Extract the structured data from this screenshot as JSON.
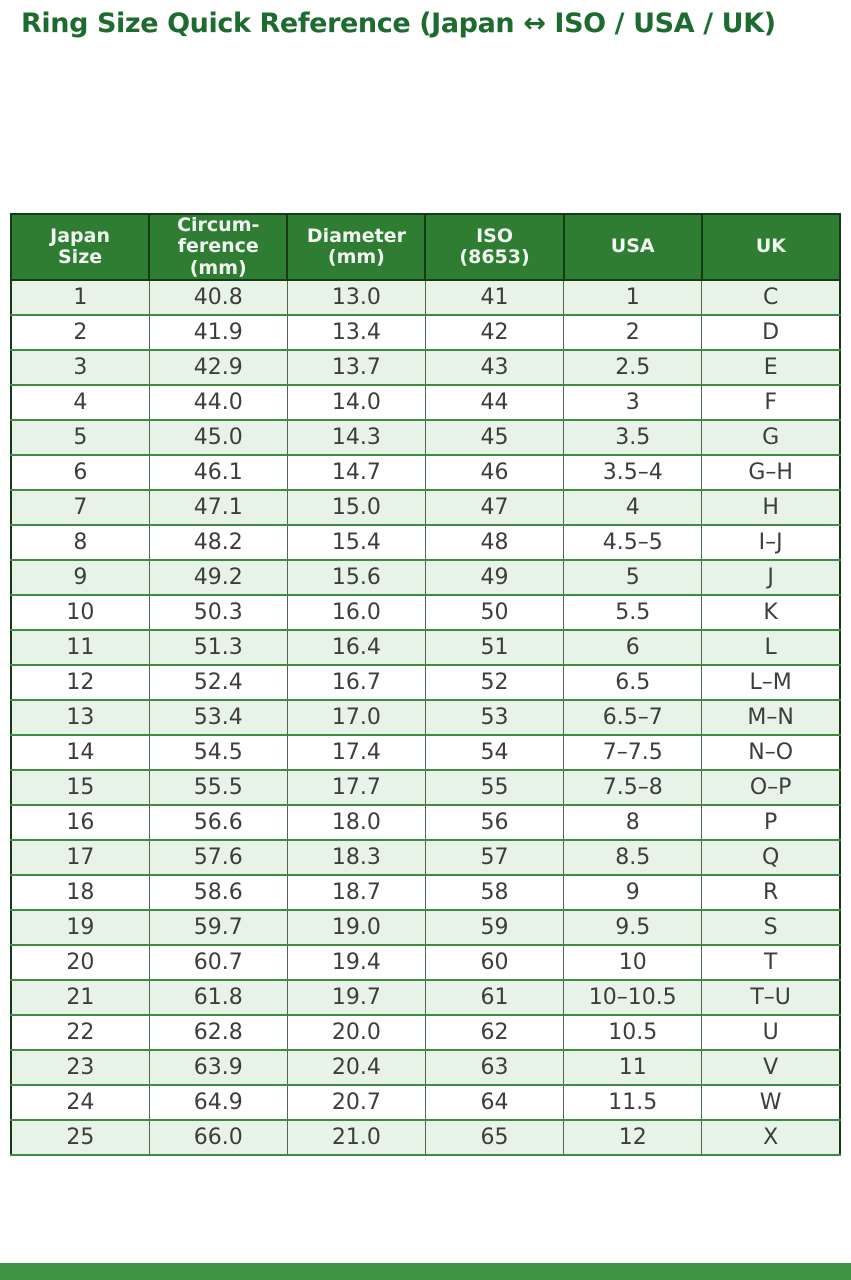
{
  "page": {
    "title": "Ring Size Quick Reference (Japan ↔ ISO / USA / UK)"
  },
  "colors": {
    "title_text": "#1d6b2f",
    "header_bg": "#2e7d32",
    "header_text": "#f0f7f0",
    "row_alt_bg": "#e8f3e8",
    "row_bg": "#ffffff",
    "border_dark": "#143a16",
    "border_green": "#3e8c41",
    "cell_text": "#3d3d3d",
    "footer_bar": "#3f9342"
  },
  "chart_data": {
    "type": "table",
    "title": "Ring Size Quick Reference (Japan ↔ ISO / USA / UK)",
    "columns": [
      "Japan\nSize",
      "Circum-\nference\n(mm)",
      "Diameter\n(mm)",
      "ISO\n(8653)",
      "USA",
      "UK"
    ],
    "rows": [
      [
        "1",
        "40.8",
        "13.0",
        "41",
        "1",
        "C"
      ],
      [
        "2",
        "41.9",
        "13.4",
        "42",
        "2",
        "D"
      ],
      [
        "3",
        "42.9",
        "13.7",
        "43",
        "2.5",
        "E"
      ],
      [
        "4",
        "44.0",
        "14.0",
        "44",
        "3",
        "F"
      ],
      [
        "5",
        "45.0",
        "14.3",
        "45",
        "3.5",
        "G"
      ],
      [
        "6",
        "46.1",
        "14.7",
        "46",
        "3.5–4",
        "G–H"
      ],
      [
        "7",
        "47.1",
        "15.0",
        "47",
        "4",
        "H"
      ],
      [
        "8",
        "48.2",
        "15.4",
        "48",
        "4.5–5",
        "I–J"
      ],
      [
        "9",
        "49.2",
        "15.6",
        "49",
        "5",
        "J"
      ],
      [
        "10",
        "50.3",
        "16.0",
        "50",
        "5.5",
        "K"
      ],
      [
        "11",
        "51.3",
        "16.4",
        "51",
        "6",
        "L"
      ],
      [
        "12",
        "52.4",
        "16.7",
        "52",
        "6.5",
        "L–M"
      ],
      [
        "13",
        "53.4",
        "17.0",
        "53",
        "6.5–7",
        "M–N"
      ],
      [
        "14",
        "54.5",
        "17.4",
        "54",
        "7–7.5",
        "N–O"
      ],
      [
        "15",
        "55.5",
        "17.7",
        "55",
        "7.5–8",
        "O–P"
      ],
      [
        "16",
        "56.6",
        "18.0",
        "56",
        "8",
        "P"
      ],
      [
        "17",
        "57.6",
        "18.3",
        "57",
        "8.5",
        "Q"
      ],
      [
        "18",
        "58.6",
        "18.7",
        "58",
        "9",
        "R"
      ],
      [
        "19",
        "59.7",
        "19.0",
        "59",
        "9.5",
        "S"
      ],
      [
        "20",
        "60.7",
        "19.4",
        "60",
        "10",
        "T"
      ],
      [
        "21",
        "61.8",
        "19.7",
        "61",
        "10–10.5",
        "T–U"
      ],
      [
        "22",
        "62.8",
        "20.0",
        "62",
        "10.5",
        "U"
      ],
      [
        "23",
        "63.9",
        "20.4",
        "63",
        "11",
        "V"
      ],
      [
        "24",
        "64.9",
        "20.7",
        "64",
        "11.5",
        "W"
      ],
      [
        "25",
        "66.0",
        "21.0",
        "65",
        "12",
        "X"
      ]
    ]
  }
}
